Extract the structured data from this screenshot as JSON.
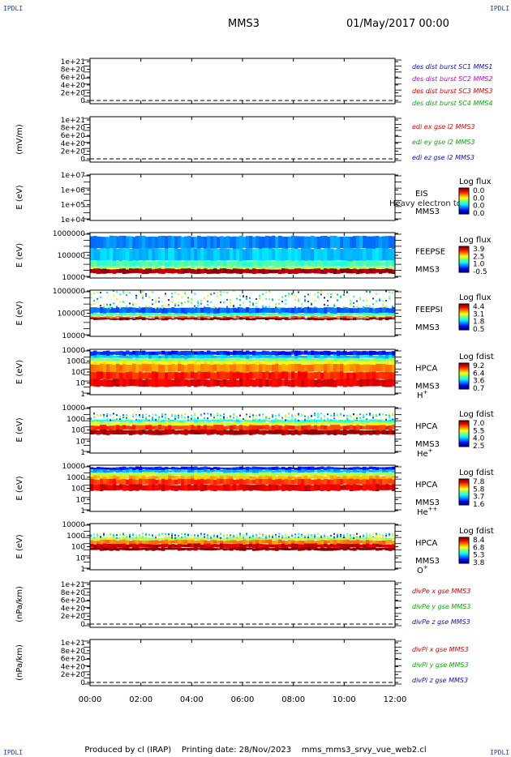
{
  "corner_label": "IPDLI",
  "header": {
    "spacecraft": "MMS3",
    "datetime": "01/May/2017 00:00"
  },
  "footer": {
    "produced_by": "Produced by cl (IRAP)",
    "printing_date": "Printing date: 28/Nov/2023",
    "script_name": "mms_mms3_srvy_vue_web2.cl"
  },
  "colors": {
    "mms1": "#1010c0",
    "mms2": "#d000d0",
    "mms3": "#e00000",
    "mms4": "#00b000",
    "x": "#e00000",
    "y": "#00b000",
    "z": "#1010c0"
  },
  "chart_data": {
    "type": "multi-panel time series",
    "x": {
      "ticks": [
        "00:00",
        "02:00",
        "04:00",
        "06:00",
        "08:00",
        "10:00",
        "12:00"
      ],
      "range": [
        "00:00",
        "12:00"
      ]
    },
    "panels": [
      {
        "id": "line1",
        "type": "line",
        "ylabel": "",
        "yticks": [
          "1e+21",
          "8e+20",
          "6e+20",
          "4e+20",
          "2e+20",
          "0"
        ],
        "legend": [
          {
            "text": "des dist burst SC1 MMS1",
            "color": "mms1"
          },
          {
            "text": "des dist burst SC2 MMS2",
            "color": "mms2"
          },
          {
            "text": "des dist burst SC3 MMS3",
            "color": "mms3"
          },
          {
            "text": "des dist burst SC4 MMS4",
            "color": "mms4"
          }
        ]
      },
      {
        "id": "line2",
        "type": "line",
        "ylabel": "(mV/m)",
        "yticks": [
          "1e+21",
          "8e+20",
          "6e+20",
          "4e+20",
          "2e+20",
          "0"
        ],
        "legend": [
          {
            "text": "edi ex gse l2 MMS3",
            "color": "x"
          },
          {
            "text": "edi ey gse l2 MMS3",
            "color": "y"
          },
          {
            "text": "edi ez gse l2 MMS3",
            "color": "z"
          }
        ]
      },
      {
        "id": "eis",
        "type": "heatmap",
        "ylabel": "E (eV)",
        "log": true,
        "yticks": [
          "1e+07",
          "1e+06",
          "1e+05",
          "1e+04"
        ],
        "name": [
          "EIS",
          "MMS3"
        ],
        "overlay": "Heavy electron to",
        "cbar_title": "Log flux",
        "cbar_ticks": [
          "0.0",
          "0.0",
          "0.0",
          "0.0"
        ],
        "fill": "none"
      },
      {
        "id": "feepse",
        "type": "heatmap",
        "ylabel": "E (eV)",
        "log": true,
        "yticks": [
          "1000000",
          "100000",
          "10000"
        ],
        "name": [
          "FEEPSE",
          "MMS3"
        ],
        "cbar_title": "Log flux",
        "cbar_ticks": [
          "3.9",
          "2.5",
          "1.0",
          "-0.5"
        ],
        "fill": "feepse"
      },
      {
        "id": "feepsi",
        "type": "heatmap",
        "ylabel": "E (eV)",
        "log": true,
        "yticks": [
          "1000000",
          "100000",
          "10000"
        ],
        "name": [
          "FEEPSI",
          "MMS3"
        ],
        "cbar_title": "Log flux",
        "cbar_ticks": [
          "4.4",
          "3.1",
          "1.8",
          "0.5"
        ],
        "fill": "feepsi"
      },
      {
        "id": "hpca_h",
        "type": "heatmap",
        "ylabel": "E (eV)",
        "log": true,
        "yticks": [
          "10000",
          "1000",
          "100",
          "10",
          "1"
        ],
        "name": [
          "HPCA",
          "MMS3"
        ],
        "species": "H",
        "charge": "+",
        "cbar_title": "Log fdist",
        "cbar_ticks": [
          "9.2",
          "6.4",
          "3.6",
          "0.7"
        ],
        "fill": "hpca_h"
      },
      {
        "id": "hpca_he",
        "type": "heatmap",
        "ylabel": "E (eV)",
        "log": true,
        "yticks": [
          "10000",
          "1000",
          "100",
          "10",
          "1"
        ],
        "name": [
          "HPCA",
          "MMS3"
        ],
        "species": "He",
        "charge": "+",
        "cbar_title": "Log fdist",
        "cbar_ticks": [
          "7.0",
          "5.5",
          "4.0",
          "2.5"
        ],
        "fill": "hpca_he"
      },
      {
        "id": "hpca_hepp",
        "type": "heatmap",
        "ylabel": "E (eV)",
        "log": true,
        "yticks": [
          "10000",
          "1000",
          "100",
          "10",
          "1"
        ],
        "name": [
          "HPCA",
          "MMS3"
        ],
        "species": "He",
        "charge": "++",
        "cbar_title": "Log fdist",
        "cbar_ticks": [
          "7.8",
          "5.8",
          "3.7",
          "1.6"
        ],
        "fill": "hpca_hepp"
      },
      {
        "id": "hpca_o",
        "type": "heatmap",
        "ylabel": "E (eV)",
        "log": true,
        "yticks": [
          "10000",
          "1000",
          "100",
          "10",
          "1"
        ],
        "name": [
          "HPCA",
          "MMS3"
        ],
        "species": "O",
        "charge": "+",
        "cbar_title": "Log fdist",
        "cbar_ticks": [
          "8.4",
          "6.8",
          "5.3",
          "3.8"
        ],
        "fill": "hpca_o"
      },
      {
        "id": "line3",
        "type": "line",
        "ylabel": "(nPa/km)",
        "yticks": [
          "1e+21",
          "8e+20",
          "6e+20",
          "4e+20",
          "2e+20",
          "0"
        ],
        "legend": [
          {
            "text": "divPe x gse MMS3",
            "color": "x"
          },
          {
            "text": "divPe y gse MMS3",
            "color": "y"
          },
          {
            "text": "divPe z gse MMS3",
            "color": "z"
          }
        ]
      },
      {
        "id": "line4",
        "type": "line",
        "ylabel": "(nPa/km)",
        "yticks": [
          "1e+21",
          "8e+20",
          "6e+20",
          "4e+20",
          "2e+20",
          "0"
        ],
        "legend": [
          {
            "text": "divPi x gse MMS3",
            "color": "x"
          },
          {
            "text": "divPi y gse MMS3",
            "color": "y"
          },
          {
            "text": "divPi z gse MMS3",
            "color": "z"
          }
        ]
      }
    ]
  }
}
